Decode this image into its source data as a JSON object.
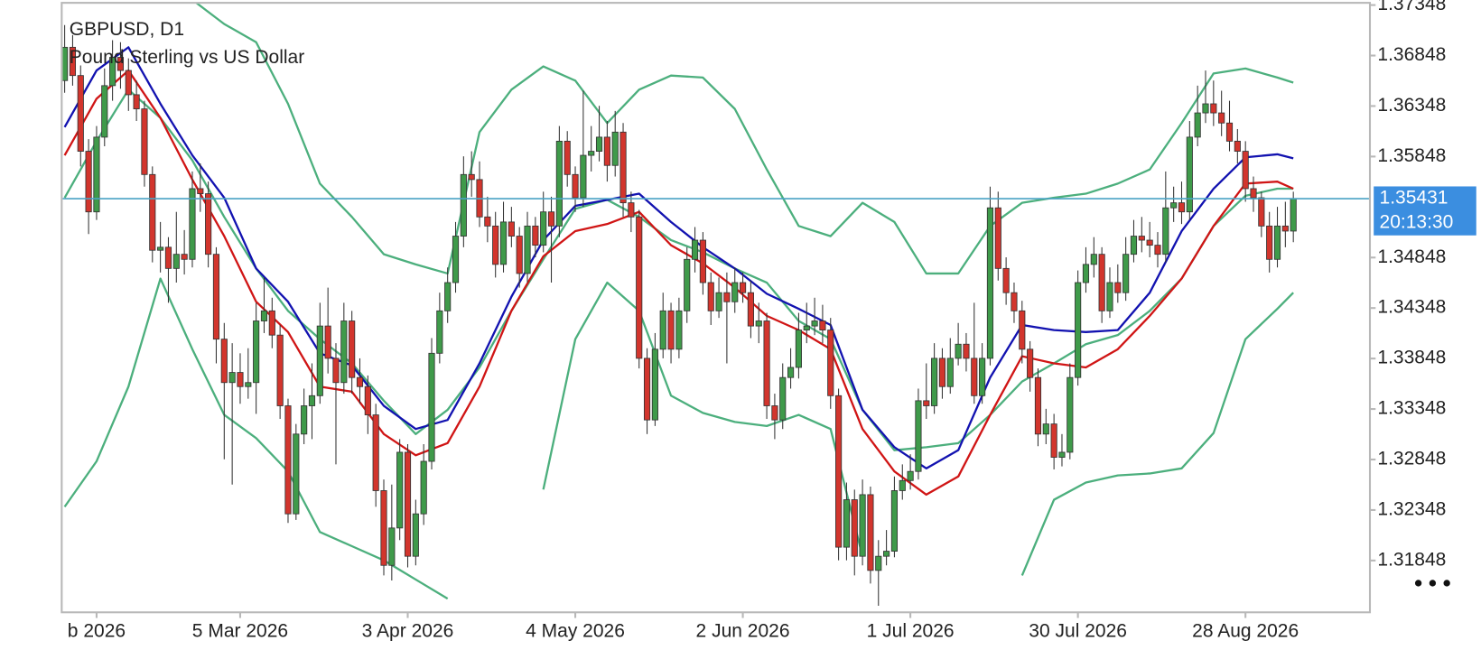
{
  "chart_data": {
    "type": "candlestick",
    "symbol": "GBPUSD, D1",
    "description": "Pound Sterling vs US Dollar",
    "last_price": 1.35431,
    "countdown": "20:13:30",
    "up_color": "#3f9a4a",
    "down_color": "#d2352d",
    "price_line_color": "#4aa3c4",
    "price_box_color": "#3b8ee0",
    "xlim": [
      -0.37,
      163.6
    ],
    "ylim": [
      1.31335,
      1.3737
    ],
    "yticks": [
      1.37348,
      1.36848,
      1.36348,
      1.35848,
      1.34848,
      1.34348,
      1.33848,
      1.33348,
      1.32848,
      1.32348,
      1.31848
    ],
    "xticks": [
      {
        "value": 4,
        "label": "b 2026"
      },
      {
        "value": 22,
        "label": "5 Mar 2026"
      },
      {
        "value": 43,
        "label": "3 Apr 2026"
      },
      {
        "value": 64,
        "label": "4 May 2026"
      },
      {
        "value": 85,
        "label": "2 Jun 2026"
      },
      {
        "value": 106,
        "label": "1 Jul 2026"
      },
      {
        "value": 127,
        "label": "30 Jul 2026"
      },
      {
        "value": 148,
        "label": "28 Aug 2026"
      }
    ],
    "candles": [
      [
        1.366,
        1.3715,
        1.3648,
        1.3693
      ],
      [
        1.3693,
        1.3705,
        1.3655,
        1.3665
      ],
      [
        1.3665,
        1.3675,
        1.3575,
        1.359
      ],
      [
        1.359,
        1.3602,
        1.3508,
        1.353
      ],
      [
        1.353,
        1.3615,
        1.3522,
        1.3604
      ],
      [
        1.3604,
        1.3672,
        1.3595,
        1.3655
      ],
      [
        1.3655,
        1.37,
        1.364,
        1.3683
      ],
      [
        1.3683,
        1.3698,
        1.3652,
        1.367
      ],
      [
        1.367,
        1.3682,
        1.363,
        1.3646
      ],
      [
        1.3646,
        1.366,
        1.362,
        1.3632
      ],
      [
        1.3632,
        1.364,
        1.3555,
        1.3567
      ],
      [
        1.3567,
        1.3575,
        1.348,
        1.3492
      ],
      [
        1.3492,
        1.352,
        1.347,
        1.3495
      ],
      [
        1.3495,
        1.3505,
        1.344,
        1.3474
      ],
      [
        1.3474,
        1.353,
        1.346,
        1.3488
      ],
      [
        1.3488,
        1.3512,
        1.3468,
        1.3483
      ],
      [
        1.3483,
        1.357,
        1.3475,
        1.3553
      ],
      [
        1.3553,
        1.3578,
        1.353,
        1.3548
      ],
      [
        1.3548,
        1.356,
        1.3475,
        1.3488
      ],
      [
        1.3488,
        1.3495,
        1.338,
        1.3404
      ],
      [
        1.3404,
        1.342,
        1.3285,
        1.3361
      ],
      [
        1.3361,
        1.34,
        1.326,
        1.3371
      ],
      [
        1.3371,
        1.339,
        1.334,
        1.3357
      ],
      [
        1.3357,
        1.3395,
        1.3345,
        1.3361
      ],
      [
        1.3361,
        1.344,
        1.333,
        1.3422
      ],
      [
        1.3422,
        1.3465,
        1.341,
        1.3432
      ],
      [
        1.3432,
        1.3445,
        1.3395,
        1.3408
      ],
      [
        1.3408,
        1.3418,
        1.3325,
        1.3338
      ],
      [
        1.3338,
        1.3345,
        1.3222,
        1.3231
      ],
      [
        1.3231,
        1.332,
        1.3225,
        1.331
      ],
      [
        1.331,
        1.3355,
        1.33,
        1.3338
      ],
      [
        1.3338,
        1.338,
        1.3305,
        1.3348
      ],
      [
        1.3348,
        1.344,
        1.334,
        1.3417
      ],
      [
        1.3417,
        1.3455,
        1.337,
        1.3385
      ],
      [
        1.3385,
        1.34,
        1.328,
        1.3361
      ],
      [
        1.3361,
        1.344,
        1.335,
        1.3422
      ],
      [
        1.3422,
        1.3432,
        1.335,
        1.3366
      ],
      [
        1.3366,
        1.3385,
        1.334,
        1.3357
      ],
      [
        1.3357,
        1.3368,
        1.331,
        1.3329
      ],
      [
        1.3329,
        1.334,
        1.3238,
        1.3254
      ],
      [
        1.3254,
        1.3265,
        1.317,
        1.318
      ],
      [
        1.318,
        1.326,
        1.3165,
        1.3217
      ],
      [
        1.3217,
        1.3305,
        1.3205,
        1.3292
      ],
      [
        1.3292,
        1.33,
        1.3178,
        1.3189
      ],
      [
        1.3189,
        1.3245,
        1.318,
        1.3231
      ],
      [
        1.3231,
        1.33,
        1.322,
        1.3283
      ],
      [
        1.3283,
        1.3405,
        1.3275,
        1.339
      ],
      [
        1.339,
        1.345,
        1.338,
        1.3432
      ],
      [
        1.3432,
        1.3475,
        1.342,
        1.346
      ],
      [
        1.346,
        1.352,
        1.345,
        1.3506
      ],
      [
        1.3506,
        1.3585,
        1.3495,
        1.3567
      ],
      [
        1.3567,
        1.359,
        1.3545,
        1.3562
      ],
      [
        1.3562,
        1.358,
        1.3515,
        1.3525
      ],
      [
        1.3525,
        1.3545,
        1.35,
        1.3516
      ],
      [
        1.3516,
        1.353,
        1.3465,
        1.3478
      ],
      [
        1.3478,
        1.354,
        1.347,
        1.352
      ],
      [
        1.352,
        1.3535,
        1.3495,
        1.3506
      ],
      [
        1.3506,
        1.3515,
        1.3455,
        1.3469
      ],
      [
        1.3469,
        1.353,
        1.346,
        1.3516
      ],
      [
        1.3516,
        1.3525,
        1.3485,
        1.3497
      ],
      [
        1.3497,
        1.355,
        1.349,
        1.353
      ],
      [
        1.353,
        1.3545,
        1.346,
        1.3516
      ],
      [
        1.3516,
        1.3615,
        1.3505,
        1.36
      ],
      [
        1.36,
        1.361,
        1.3555,
        1.3567
      ],
      [
        1.3567,
        1.3575,
        1.353,
        1.3544
      ],
      [
        1.3544,
        1.365,
        1.3535,
        1.3586
      ],
      [
        1.3586,
        1.3615,
        1.357,
        1.359
      ],
      [
        1.359,
        1.3635,
        1.358,
        1.3604
      ],
      [
        1.3604,
        1.362,
        1.356,
        1.3576
      ],
      [
        1.3576,
        1.363,
        1.3565,
        1.3609
      ],
      [
        1.3609,
        1.3618,
        1.3525,
        1.3539
      ],
      [
        1.3539,
        1.355,
        1.351,
        1.3525
      ],
      [
        1.3525,
        1.3532,
        1.3375,
        1.3385
      ],
      [
        1.3385,
        1.3395,
        1.331,
        1.3324
      ],
      [
        1.3324,
        1.341,
        1.3318,
        1.3394
      ],
      [
        1.3394,
        1.345,
        1.3385,
        1.3432
      ],
      [
        1.3432,
        1.344,
        1.338,
        1.3394
      ],
      [
        1.3394,
        1.3445,
        1.3385,
        1.3432
      ],
      [
        1.3432,
        1.3495,
        1.342,
        1.3483
      ],
      [
        1.3483,
        1.3515,
        1.347,
        1.3502
      ],
      [
        1.3502,
        1.351,
        1.3448,
        1.346
      ],
      [
        1.346,
        1.347,
        1.3418,
        1.3432
      ],
      [
        1.3432,
        1.3465,
        1.3425,
        1.345
      ],
      [
        1.345,
        1.347,
        1.338,
        1.3441
      ],
      [
        1.3441,
        1.3475,
        1.343,
        1.346
      ],
      [
        1.346,
        1.347,
        1.344,
        1.345
      ],
      [
        1.345,
        1.3462,
        1.3405,
        1.3417
      ],
      [
        1.3417,
        1.344,
        1.34,
        1.3422
      ],
      [
        1.3422,
        1.343,
        1.3325,
        1.3338
      ],
      [
        1.3338,
        1.335,
        1.3305,
        1.3324
      ],
      [
        1.3324,
        1.338,
        1.3315,
        1.3366
      ],
      [
        1.3366,
        1.3395,
        1.3355,
        1.3376
      ],
      [
        1.3376,
        1.343,
        1.3365,
        1.3413
      ],
      [
        1.3413,
        1.344,
        1.34,
        1.3417
      ],
      [
        1.3417,
        1.3445,
        1.3408,
        1.3422
      ],
      [
        1.3422,
        1.3438,
        1.34,
        1.3413
      ],
      [
        1.3413,
        1.3425,
        1.3335,
        1.3348
      ],
      [
        1.3348,
        1.3355,
        1.3185,
        1.3198
      ],
      [
        1.3198,
        1.3262,
        1.3185,
        1.3245
      ],
      [
        1.3245,
        1.3255,
        1.317,
        1.3189
      ],
      [
        1.3189,
        1.3265,
        1.318,
        1.325
      ],
      [
        1.325,
        1.3258,
        1.3162,
        1.3175
      ],
      [
        1.3175,
        1.3205,
        1.314,
        1.3189
      ],
      [
        1.3189,
        1.3215,
        1.318,
        1.3194
      ],
      [
        1.3194,
        1.3268,
        1.3188,
        1.3254
      ],
      [
        1.3254,
        1.328,
        1.3245,
        1.3264
      ],
      [
        1.3264,
        1.329,
        1.3255,
        1.3273
      ],
      [
        1.3273,
        1.3355,
        1.3265,
        1.3343
      ],
      [
        1.3343,
        1.338,
        1.3325,
        1.3338
      ],
      [
        1.3338,
        1.34,
        1.333,
        1.3385
      ],
      [
        1.3385,
        1.3395,
        1.3345,
        1.3357
      ],
      [
        1.3357,
        1.3405,
        1.335,
        1.3385
      ],
      [
        1.3385,
        1.342,
        1.3378,
        1.3399
      ],
      [
        1.3399,
        1.341,
        1.3372,
        1.3385
      ],
      [
        1.3385,
        1.344,
        1.334,
        1.3348
      ],
      [
        1.3348,
        1.34,
        1.334,
        1.3385
      ],
      [
        1.3385,
        1.3555,
        1.3378,
        1.3534
      ],
      [
        1.3534,
        1.355,
        1.3462,
        1.3474
      ],
      [
        1.3474,
        1.3485,
        1.3438,
        1.345
      ],
      [
        1.345,
        1.346,
        1.342,
        1.3432
      ],
      [
        1.3432,
        1.3442,
        1.338,
        1.3394
      ],
      [
        1.3394,
        1.3402,
        1.3352,
        1.3366
      ],
      [
        1.3366,
        1.3375,
        1.3298,
        1.331
      ],
      [
        1.331,
        1.3335,
        1.33,
        1.332
      ],
      [
        1.332,
        1.333,
        1.3275,
        1.3287
      ],
      [
        1.3287,
        1.331,
        1.3278,
        1.3292
      ],
      [
        1.3292,
        1.338,
        1.3285,
        1.3366
      ],
      [
        1.3366,
        1.3472,
        1.3358,
        1.346
      ],
      [
        1.346,
        1.3495,
        1.345,
        1.3478
      ],
      [
        1.3478,
        1.3505,
        1.3465,
        1.3488
      ],
      [
        1.3488,
        1.3495,
        1.342,
        1.3432
      ],
      [
        1.3432,
        1.3475,
        1.3425,
        1.346
      ],
      [
        1.346,
        1.3478,
        1.344,
        1.345
      ],
      [
        1.345,
        1.3505,
        1.3442,
        1.3488
      ],
      [
        1.3488,
        1.3522,
        1.348,
        1.3506
      ],
      [
        1.3506,
        1.3525,
        1.349,
        1.3502
      ],
      [
        1.3502,
        1.352,
        1.3485,
        1.3497
      ],
      [
        1.3497,
        1.351,
        1.3475,
        1.3488
      ],
      [
        1.3488,
        1.357,
        1.348,
        1.3534
      ],
      [
        1.3534,
        1.3555,
        1.352,
        1.3539
      ],
      [
        1.3539,
        1.356,
        1.3518,
        1.353
      ],
      [
        1.353,
        1.362,
        1.3522,
        1.3604
      ],
      [
        1.3604,
        1.3655,
        1.3595,
        1.3628
      ],
      [
        1.3628,
        1.367,
        1.3618,
        1.3637
      ],
      [
        1.3637,
        1.366,
        1.3615,
        1.3628
      ],
      [
        1.3628,
        1.365,
        1.3605,
        1.3618
      ],
      [
        1.3618,
        1.364,
        1.359,
        1.36
      ],
      [
        1.36,
        1.3612,
        1.3578,
        1.359
      ],
      [
        1.359,
        1.36,
        1.354,
        1.3553
      ],
      [
        1.3553,
        1.3565,
        1.353,
        1.3544
      ],
      [
        1.3544,
        1.355,
        1.3505,
        1.3516
      ],
      [
        1.3516,
        1.353,
        1.347,
        1.3483
      ],
      [
        1.3483,
        1.3535,
        1.3475,
        1.3516
      ],
      [
        1.3516,
        1.354,
        1.3495,
        1.3511
      ],
      [
        1.3511,
        1.355,
        1.35,
        1.35431
      ]
    ],
    "x": [
      0,
      4,
      8,
      12,
      16,
      20,
      24,
      28,
      32,
      36,
      40,
      44,
      48,
      52,
      56,
      60,
      64,
      68,
      72,
      76,
      80,
      84,
      88,
      92,
      96,
      100,
      104,
      108,
      112,
      116,
      120,
      124,
      128,
      132,
      136,
      140,
      144,
      148,
      152,
      154
    ],
    "series": [
      {
        "color": "#4caf7d",
        "values": [
          null,
          null,
          null,
          null,
          1.374,
          1.3716,
          1.3698,
          1.3637,
          1.3558,
          1.3525,
          1.3488,
          1.3478,
          1.3469,
          1.3609,
          1.3651,
          1.3674,
          1.366,
          1.3618,
          1.3651,
          1.3665,
          1.3663,
          1.3632,
          1.3572,
          1.3516,
          1.3506,
          1.3539,
          1.352,
          1.3469,
          1.3469,
          1.3516,
          1.3539,
          1.3544,
          1.3548,
          1.3558,
          1.3572,
          1.3618,
          1.3667,
          1.3672,
          1.3663,
          1.3658
        ]
      },
      {
        "color": "#4caf7d",
        "values": [
          1.3544,
          1.36,
          1.3651,
          1.3623,
          1.3581,
          1.3525,
          1.3474,
          1.3432,
          1.3404,
          1.338,
          1.3343,
          1.331,
          1.3334,
          1.3376,
          1.3432,
          1.3483,
          1.3533,
          1.3542,
          1.3525,
          1.3502,
          1.349,
          1.3474,
          1.346,
          1.3422,
          1.3404,
          1.3334,
          1.3294,
          1.3297,
          1.3301,
          1.3329,
          1.3362,
          1.338,
          1.3399,
          1.3408,
          1.3432,
          1.3464,
          1.3516,
          1.3546,
          1.3553,
          1.3553
        ]
      },
      {
        "color": "#4caf7d",
        "values": [
          1.3238,
          1.3283,
          1.3357,
          1.3464,
          1.3394,
          1.3329,
          1.3306,
          1.3273,
          1.3213,
          1.3199,
          1.3185,
          1.3166,
          1.3147,
          null,
          null,
          1.3255,
          1.3404,
          1.346,
          1.3432,
          1.3348,
          1.3331,
          1.3322,
          1.3318,
          1.3329,
          1.3315,
          1.3189,
          null,
          null,
          null,
          null,
          1.317,
          1.3245,
          1.3262,
          1.3269,
          1.3271,
          1.3276,
          1.3311,
          1.3404,
          1.3434,
          1.345
        ]
      },
      {
        "color": "#1212b0",
        "values": [
          1.3614,
          1.367,
          1.3693,
          1.3637,
          1.3586,
          1.3544,
          1.3474,
          1.3441,
          1.339,
          1.3378,
          1.3338,
          1.3315,
          1.3324,
          1.338,
          1.3446,
          1.3502,
          1.3536,
          1.3542,
          1.3548,
          1.352,
          1.3495,
          1.3474,
          1.3449,
          1.3434,
          1.3418,
          1.3334,
          1.3297,
          1.3276,
          1.3294,
          1.3366,
          1.3418,
          1.3413,
          1.3411,
          1.3413,
          1.345,
          1.3511,
          1.3553,
          1.3584,
          1.3587,
          1.3583
        ]
      },
      {
        "color": "#d01515",
        "values": [
          1.3586,
          1.3642,
          1.367,
          1.3623,
          1.3562,
          1.3506,
          1.3441,
          1.3411,
          1.3357,
          1.3352,
          1.331,
          1.3289,
          1.3301,
          1.3357,
          1.3432,
          1.3486,
          1.3511,
          1.3518,
          1.353,
          1.3497,
          1.3479,
          1.3455,
          1.3427,
          1.3413,
          1.3394,
          1.3315,
          1.3273,
          1.325,
          1.3268,
          1.3329,
          1.3387,
          1.338,
          1.3376,
          1.3394,
          1.3427,
          1.3464,
          1.3516,
          1.3558,
          1.356,
          1.3553
        ]
      }
    ]
  }
}
